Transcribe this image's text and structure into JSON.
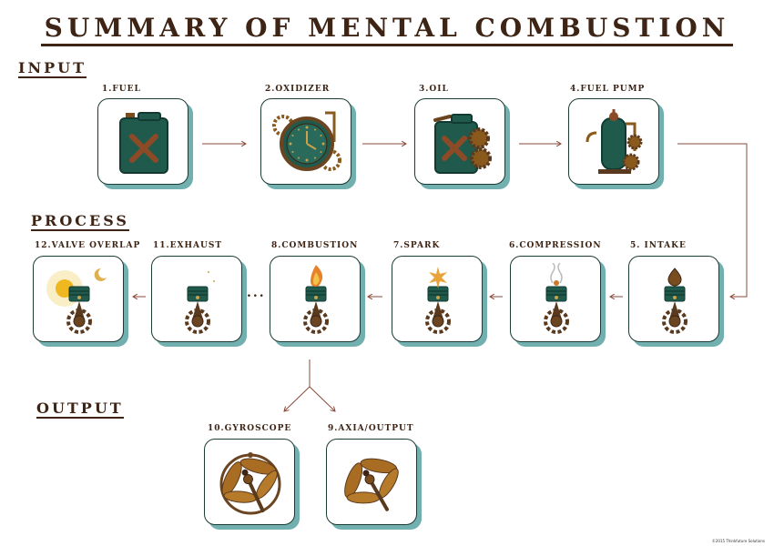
{
  "title": "SUMMARY OF MENTAL COMBUSTION",
  "sections": {
    "input": "INPUT",
    "process": "PROCESS",
    "output": "OUTPUT"
  },
  "steps": {
    "fuel": "1.FUEL",
    "oxidizer": "2.OXIDIZER",
    "oil": "3.OIL",
    "fuel_pump": "4.FUEL PUMP",
    "intake": "5. INTAKE",
    "compression": "6.COMPRESSION",
    "spark": "7.SPARK",
    "combustion": "8.COMBUSTION",
    "exhaust": "11.EXHAUST",
    "valve_overlap": "12.VALVE OVERLAP",
    "gyroscope": "10.GYROSCOPE",
    "axia_output": "9.AXIA/OUTPUT"
  },
  "ellipsis": "...",
  "copyright": "©2015 Thinkfuture Solutions",
  "colors": {
    "text": "#3d2414",
    "card_border": "#1b3b35",
    "card_shadow": "#72b0b0",
    "arrow": "#8a4a3a",
    "teal": "#1f5a4c",
    "brass": "#8a5a1c",
    "rust": "#8c4a26"
  },
  "icons": {
    "fuel": "jerrycan-icon",
    "oxidizer": "steampunk-clock-icon",
    "oil": "oil-can-gears-icon",
    "fuel_pump": "fuel-pump-icon",
    "intake": "piston-droplet-icon",
    "compression": "piston-steam-icon",
    "spark": "piston-spark-icon",
    "combustion": "piston-flame-icon",
    "exhaust": "piston-moon-icon",
    "valve_overlap": "piston-sun-icon",
    "gyroscope": "dragonfly-gyroscope-icon",
    "axia_output": "dragonfly-icon"
  }
}
